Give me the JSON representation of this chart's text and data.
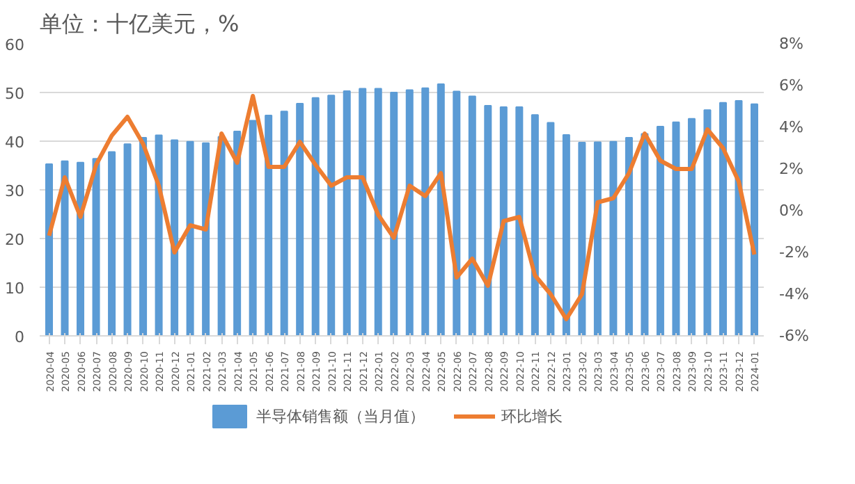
{
  "chart_data": {
    "type": "bar",
    "title": "单位：十亿美元，%",
    "categories": [
      "2020-04",
      "2020-05",
      "2020-06",
      "2020-07",
      "2020-08",
      "2020-09",
      "2020-10",
      "2020-11",
      "2020-12",
      "2021-01",
      "2021-02",
      "2021-03",
      "2021-04",
      "2021-05",
      "2021-06",
      "2021-07",
      "2021-08",
      "2021-09",
      "2021-10",
      "2021-11",
      "2021-12",
      "2022-01",
      "2022-02",
      "2022-03",
      "2022-04",
      "2022-05",
      "2022-06",
      "2022-07",
      "2022-08",
      "2022-09",
      "2022-10",
      "2022-11",
      "2022-12",
      "2023-01",
      "2023-02",
      "2023-03",
      "2023-04",
      "2023-05",
      "2023-06",
      "2023-07",
      "2023-08",
      "2023-09",
      "2023-10",
      "2023-11",
      "2023-12",
      "2024-01"
    ],
    "series": [
      {
        "name": "半导体销售额（当月值）",
        "color": "#5b9bd5",
        "values": [
          35.3,
          35.9,
          35.6,
          36.4,
          37.8,
          39.4,
          40.7,
          41.2,
          40.2,
          39.9,
          39.6,
          40.9,
          42.0,
          44.2,
          45.3,
          46.1,
          47.7,
          48.9,
          49.4,
          50.3,
          50.8,
          50.8,
          50.0,
          50.5,
          50.9,
          51.7,
          50.2,
          49.2,
          47.3,
          47.0,
          47.0,
          45.4,
          43.8,
          41.3,
          39.7,
          39.8,
          39.9,
          40.7,
          41.5,
          43.0,
          43.9,
          44.6,
          46.4,
          47.9,
          48.3,
          47.6
        ]
      },
      {
        "name": "环比增长",
        "type": "line",
        "axis": "y2",
        "color": "#ed7d31",
        "values": [
          -1.2,
          1.6,
          -0.3,
          2.2,
          3.6,
          4.5,
          3.2,
          1.2,
          -2.0,
          -0.7,
          -0.9,
          3.7,
          2.3,
          5.5,
          2.1,
          2.1,
          3.3,
          2.2,
          1.2,
          1.6,
          1.6,
          -0.2,
          -1.3,
          1.2,
          0.7,
          1.8,
          -3.2,
          -2.3,
          -3.6,
          -0.5,
          -0.3,
          -3.1,
          -4.0,
          -5.2,
          -4.0,
          0.4,
          0.6,
          1.8,
          3.7,
          2.4,
          2.0,
          2.0,
          3.9,
          3.0,
          1.4,
          -2.1
        ]
      }
    ],
    "ylim": [
      0,
      60
    ],
    "yticks": [
      0,
      10,
      20,
      30,
      40,
      50,
      60
    ],
    "y2lim": [
      -6,
      8
    ],
    "y2ticks": [
      {
        "value": -6,
        "label": "-6%"
      },
      {
        "value": -4,
        "label": "-4%"
      },
      {
        "value": -2,
        "label": "-2%"
      },
      {
        "value": 0,
        "label": "0%"
      },
      {
        "value": 2,
        "label": "2%"
      },
      {
        "value": 4,
        "label": "4%"
      },
      {
        "value": 6,
        "label": "6%"
      },
      {
        "value": 8,
        "label": "8%"
      }
    ],
    "grid": "y",
    "legend": "bottom",
    "marker": "none",
    "line_style": "solid"
  }
}
